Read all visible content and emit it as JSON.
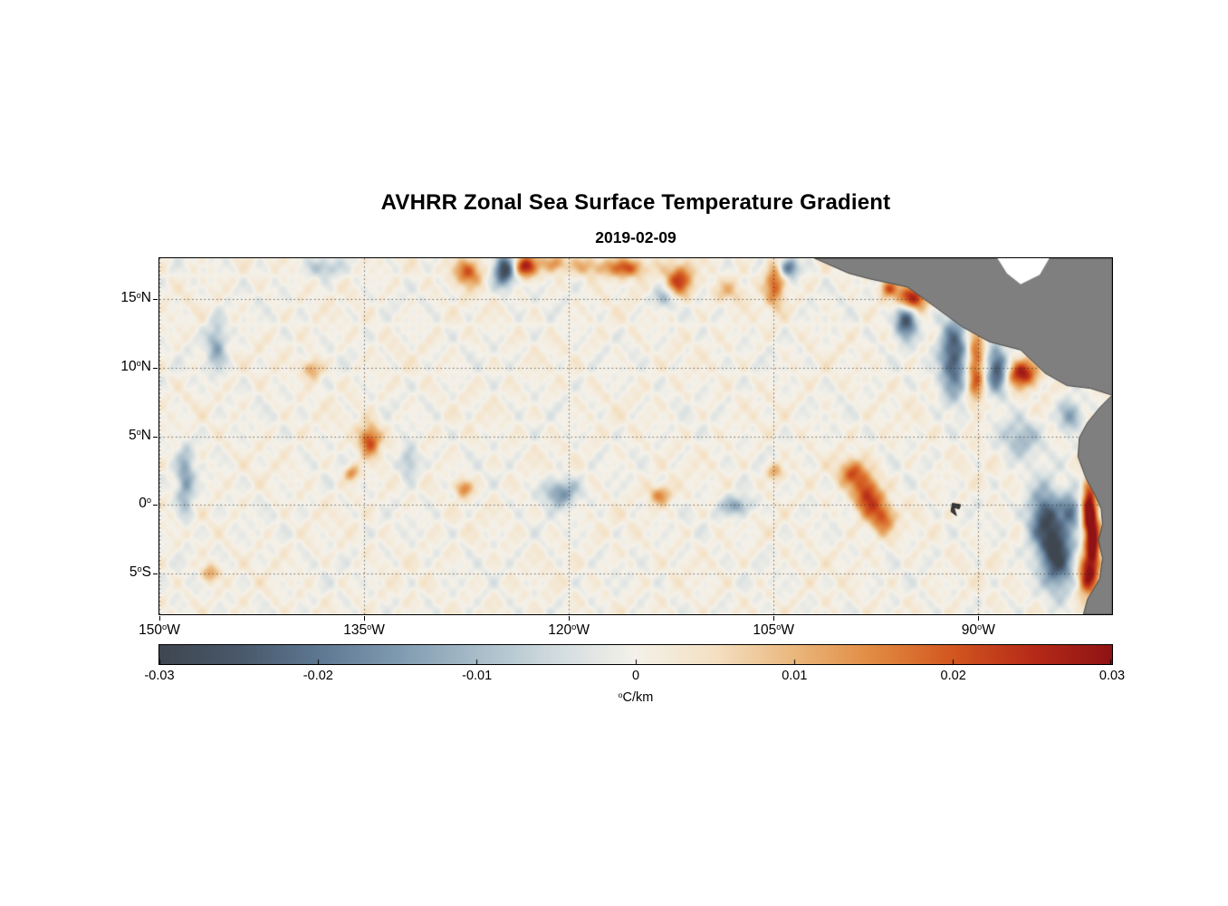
{
  "chart_data": {
    "type": "heatmap",
    "title": "AVHRR Zonal Sea Surface Temperature Gradient",
    "subtitle": "2019-02-09",
    "x": {
      "ticks": [
        "150°W",
        "135°W",
        "120°W",
        "105°W",
        "90°W"
      ],
      "tick_lons": [
        -150,
        -135,
        -120,
        -105,
        -90
      ],
      "range": [
        -150,
        -80.2
      ]
    },
    "y": {
      "ticks": [
        "15°N",
        "10°N",
        "5°N",
        "0°",
        "5°S"
      ],
      "tick_lats": [
        15,
        10,
        5,
        0,
        -5
      ],
      "range": [
        18,
        -8
      ]
    },
    "grid": true,
    "colorbar": {
      "min": -0.03,
      "max": 0.03,
      "ticks": [
        -0.03,
        -0.02,
        -0.01,
        0,
        0.01,
        0.02,
        0.03
      ],
      "tick_labels": [
        "-0.03",
        "-0.02",
        "-0.01",
        "0",
        "0.01",
        "0.02",
        "0.03"
      ],
      "label": "°C/km",
      "stops": [
        {
          "v": -0.03,
          "c": "#3e4650"
        },
        {
          "v": -0.025,
          "c": "#49586a"
        },
        {
          "v": -0.02,
          "c": "#5d7791"
        },
        {
          "v": -0.015,
          "c": "#7f9ab0"
        },
        {
          "v": -0.01,
          "c": "#a8bcc9"
        },
        {
          "v": -0.005,
          "c": "#d2dcdf"
        },
        {
          "v": 0.0,
          "c": "#f4f1e9"
        },
        {
          "v": 0.005,
          "c": "#f4e0c2"
        },
        {
          "v": 0.01,
          "c": "#eab77c"
        },
        {
          "v": 0.015,
          "c": "#e18a42"
        },
        {
          "v": 0.02,
          "c": "#d2561f"
        },
        {
          "v": 0.025,
          "c": "#b62a18"
        },
        {
          "v": 0.03,
          "c": "#8f1314"
        }
      ]
    },
    "background_value": 0.0005,
    "noise_amplitude": 0.004,
    "features_format": [
      "lon",
      "lat",
      "value_C_per_km",
      "sigma_lon_deg",
      "sigma_lat_deg"
    ],
    "features": [
      [
        -127.4,
        17.0,
        0.02,
        0.7,
        0.7
      ],
      [
        -124.7,
        17.1,
        -0.03,
        0.55,
        0.8
      ],
      [
        -123.2,
        17.4,
        0.026,
        0.65,
        0.55
      ],
      [
        -121.0,
        17.6,
        0.014,
        0.6,
        0.45
      ],
      [
        -118.6,
        17.4,
        0.01,
        0.8,
        0.5
      ],
      [
        -115.9,
        17.3,
        0.02,
        1.1,
        0.5
      ],
      [
        -113.1,
        15.1,
        -0.012,
        0.5,
        0.5
      ],
      [
        -111.9,
        16.4,
        0.022,
        0.7,
        0.8
      ],
      [
        -108.3,
        15.6,
        0.008,
        0.8,
        0.6
      ],
      [
        -104.9,
        16.2,
        0.018,
        0.5,
        1.2
      ],
      [
        -103.9,
        17.3,
        -0.022,
        0.5,
        0.5
      ],
      [
        -137.9,
        17.3,
        -0.01,
        0.8,
        0.5
      ],
      [
        -145.8,
        11.7,
        -0.013,
        0.5,
        1.3
      ],
      [
        -148.1,
        1.6,
        -0.014,
        0.45,
        1.8
      ],
      [
        -146.3,
        -5.0,
        0.013,
        0.45,
        0.45
      ],
      [
        -138.8,
        9.9,
        0.013,
        0.5,
        0.5
      ],
      [
        -134.6,
        4.7,
        0.022,
        0.55,
        0.8
      ],
      [
        -135.9,
        2.3,
        0.014,
        0.4,
        0.4
      ],
      [
        -131.7,
        3.1,
        -0.012,
        0.5,
        0.8
      ],
      [
        -127.7,
        1.2,
        0.015,
        0.45,
        0.45
      ],
      [
        -120.6,
        0.9,
        -0.016,
        0.9,
        0.7
      ],
      [
        -113.3,
        0.7,
        0.014,
        0.6,
        0.5
      ],
      [
        -107.7,
        -0.1,
        -0.014,
        0.8,
        0.5
      ],
      [
        -104.9,
        2.4,
        0.012,
        0.45,
        0.45
      ],
      [
        -99.2,
        2.3,
        0.018,
        0.7,
        0.7
      ],
      [
        -98.1,
        0.6,
        0.024,
        0.7,
        1.0
      ],
      [
        -97.0,
        -1.0,
        0.018,
        0.6,
        0.8
      ],
      [
        -94.9,
        15.1,
        0.028,
        0.8,
        0.7
      ],
      [
        -95.3,
        13.5,
        -0.028,
        0.55,
        0.9
      ],
      [
        -96.6,
        15.8,
        0.016,
        0.4,
        0.4
      ],
      [
        -91.8,
        10.8,
        -0.026,
        0.7,
        2.0
      ],
      [
        -90.2,
        10.0,
        0.02,
        0.45,
        2.0
      ],
      [
        -88.6,
        9.9,
        -0.028,
        0.55,
        1.1
      ],
      [
        -86.8,
        9.6,
        0.028,
        0.8,
        0.7
      ],
      [
        -86.9,
        4.9,
        -0.012,
        1.0,
        1.0
      ],
      [
        -83.3,
        6.5,
        -0.015,
        0.6,
        0.8
      ],
      [
        -85.2,
        -1.0,
        -0.024,
        0.8,
        1.6
      ],
      [
        -84.2,
        -3.6,
        -0.028,
        0.8,
        1.8
      ],
      [
        -83.2,
        -0.4,
        -0.018,
        0.5,
        0.9
      ],
      [
        -81.9,
        -0.2,
        0.03,
        0.35,
        1.3
      ],
      [
        -81.6,
        -2.9,
        0.03,
        0.4,
        1.7
      ],
      [
        -82.1,
        -5.3,
        0.024,
        0.45,
        1.0
      ],
      [
        -80.4,
        3.3,
        0.026,
        0.35,
        0.8
      ]
    ],
    "land": {
      "fill": "#7f7f7f",
      "edge": "#474747",
      "polygons": [
        {
          "name": "central-america",
          "points": [
            [
              -102.0,
              18.0
            ],
            [
              -99.5,
              16.9
            ],
            [
              -98.0,
              16.5
            ],
            [
              -95.2,
              15.9
            ],
            [
              -93.8,
              14.9
            ],
            [
              -91.2,
              13.0
            ],
            [
              -89.2,
              11.9
            ],
            [
              -86.9,
              11.3
            ],
            [
              -85.1,
              9.6
            ],
            [
              -83.5,
              8.7
            ],
            [
              -81.8,
              8.5
            ],
            [
              -80.2,
              8.0
            ],
            [
              -80.2,
              18.0
            ]
          ]
        },
        {
          "name": "south-america",
          "points": [
            [
              -80.2,
              8.0
            ],
            [
              -81.1,
              7.1
            ],
            [
              -82.0,
              6.0
            ],
            [
              -82.6,
              4.9
            ],
            [
              -82.7,
              3.5
            ],
            [
              -82.1,
              1.9
            ],
            [
              -81.4,
              0.6
            ],
            [
              -81.0,
              -0.3
            ],
            [
              -80.9,
              -1.4
            ],
            [
              -81.2,
              -2.6
            ],
            [
              -80.9,
              -3.9
            ],
            [
              -81.1,
              -5.4
            ],
            [
              -82.0,
              -6.9
            ],
            [
              -82.3,
              -8.0
            ],
            [
              -80.2,
              -8.0
            ]
          ]
        }
      ],
      "no_data_polygons": [
        {
          "name": "caribbean-gap",
          "points": [
            [
              -88.6,
              18.0
            ],
            [
              -84.8,
              18.0
            ],
            [
              -85.5,
              16.8
            ],
            [
              -86.9,
              16.1
            ],
            [
              -87.9,
              16.9
            ]
          ]
        }
      ],
      "islands": [
        {
          "name": "galapagos",
          "fill": "#3c3c3c",
          "points": [
            [
              -91.9,
              0.1
            ],
            [
              -91.3,
              0.0
            ],
            [
              -91.4,
              -0.3
            ],
            [
              -91.8,
              -0.2
            ],
            [
              -91.6,
              -0.8
            ],
            [
              -92.0,
              -0.5
            ]
          ]
        }
      ]
    }
  }
}
